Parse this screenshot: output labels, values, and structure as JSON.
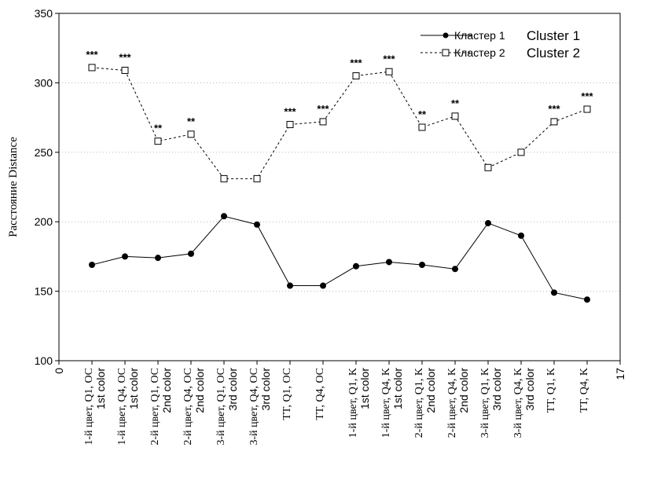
{
  "chart_data": {
    "type": "line",
    "ylabel": "Расстояние Distance",
    "ylim": [
      100,
      350
    ],
    "yticks": [
      "100",
      "150",
      "200",
      "250",
      "300",
      "350"
    ],
    "xlim": [
      0,
      17
    ],
    "x_end_ticks": [
      "0",
      "17"
    ],
    "categories": [
      {
        "ru": "1-й цвет, Q1, OC",
        "en": "1st color"
      },
      {
        "ru": "1-й цвет, Q4, OC",
        "en": "1st color"
      },
      {
        "ru": "2-й цвет, Q1, OC",
        "en": "2nd color"
      },
      {
        "ru": "2-й цвет, Q4, OC",
        "en": "2nd color"
      },
      {
        "ru": "3-й цвет, Q1, OC",
        "en": "3rd color"
      },
      {
        "ru": "3-й цвет, Q4, OC",
        "en": "3rd color"
      },
      {
        "ru": "TT, Q1, OC",
        "en": ""
      },
      {
        "ru": "TT, Q4, OC",
        "en": ""
      },
      {
        "ru": "1-й цвет, Q1, K",
        "en": "1st color"
      },
      {
        "ru": "1-й цвет, Q4, K",
        "en": "1st color"
      },
      {
        "ru": "2-й цвет, Q1, K",
        "en": "2nd color"
      },
      {
        "ru": "2-й цвет, Q4, K",
        "en": "2nd color"
      },
      {
        "ru": "3-й цвет, Q1, K",
        "en": "3rd color"
      },
      {
        "ru": "3-й цвет, Q4, K",
        "en": "3rd color"
      },
      {
        "ru": "TT, Q1, K",
        "en": ""
      },
      {
        "ru": "TT, Q4, K",
        "en": ""
      }
    ],
    "series": [
      {
        "name_ru": "Кластер 1",
        "name_en": "Cluster 1",
        "marker": "filled-circle",
        "line": "solid",
        "values": [
          169,
          175,
          174,
          177,
          204,
          198,
          154,
          154,
          168,
          171,
          169,
          166,
          199,
          190,
          149,
          144
        ]
      },
      {
        "name_ru": "Кластер 2",
        "name_en": "Cluster 2",
        "marker": "open-square",
        "line": "dashed",
        "values": [
          311,
          309,
          258,
          263,
          231,
          231,
          270,
          272,
          305,
          308,
          268,
          276,
          239,
          250,
          272,
          281
        ]
      }
    ],
    "annotations": [
      "***",
      "***",
      "**",
      "**",
      "",
      "",
      "***",
      "***",
      "***",
      "***",
      "**",
      "**",
      "",
      "",
      "***",
      "***"
    ],
    "grid": "horizontal-dotted",
    "legend_position": "top-right"
  }
}
